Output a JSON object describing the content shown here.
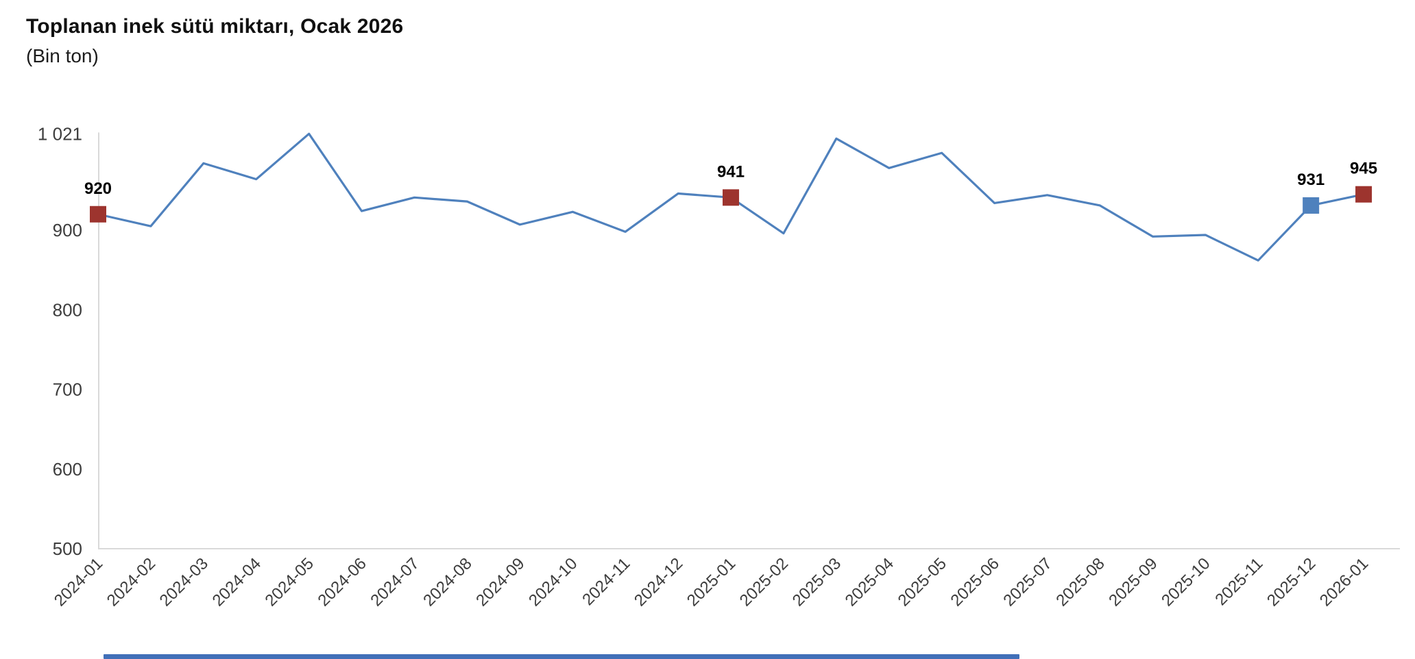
{
  "header": {
    "title": "Toplanan inek sütü miktarı, Ocak 2026",
    "subtitle": "(Bin ton)"
  },
  "chart_data": {
    "type": "line",
    "title": "Toplanan inek sütü miktarı, Ocak 2026",
    "unit_label": "(Bin ton)",
    "x": [
      "2024-01",
      "2024-02",
      "2024-03",
      "2024-04",
      "2024-05",
      "2024-06",
      "2024-07",
      "2024-08",
      "2024-09",
      "2024-10",
      "2024-11",
      "2024-12",
      "2025-01",
      "2025-02",
      "2025-03",
      "2025-04",
      "2025-05",
      "2025-06",
      "2025-07",
      "2025-08",
      "2025-09",
      "2025-10",
      "2025-11",
      "2025-12",
      "2026-01"
    ],
    "values": [
      920,
      905,
      984,
      964,
      1021,
      924,
      941,
      936,
      907,
      923,
      898,
      946,
      941,
      896,
      1015,
      978,
      997,
      934,
      944,
      931,
      892,
      894,
      862,
      931,
      945
    ],
    "ylim": [
      500,
      1021
    ],
    "yticks": [
      {
        "value": 1021,
        "label": "1 021"
      },
      {
        "value": 900,
        "label": "900"
      },
      {
        "value": 800,
        "label": "800"
      },
      {
        "value": 700,
        "label": "700"
      },
      {
        "value": 600,
        "label": "600"
      },
      {
        "value": 500,
        "label": "500"
      }
    ],
    "grid": false,
    "legend": "none",
    "highlighted_points": [
      {
        "month": "2024-01",
        "value": 920,
        "label": "920",
        "color_key": "red"
      },
      {
        "month": "2025-01",
        "value": 941,
        "label": "941",
        "color_key": "red"
      },
      {
        "month": "2025-12",
        "value": 931,
        "label": "931",
        "color_key": "blue"
      },
      {
        "month": "2026-01",
        "value": 945,
        "label": "945",
        "color_key": "red"
      }
    ],
    "colors": {
      "line": "#4f81bd",
      "highlight_red": "#9d342e",
      "highlight_blue": "#4f81bd",
      "axis": "#d9d9d9",
      "tick_text": "#3d3d3d",
      "point_label_text": "#000000",
      "bottom_bar": "#4170b8"
    }
  }
}
